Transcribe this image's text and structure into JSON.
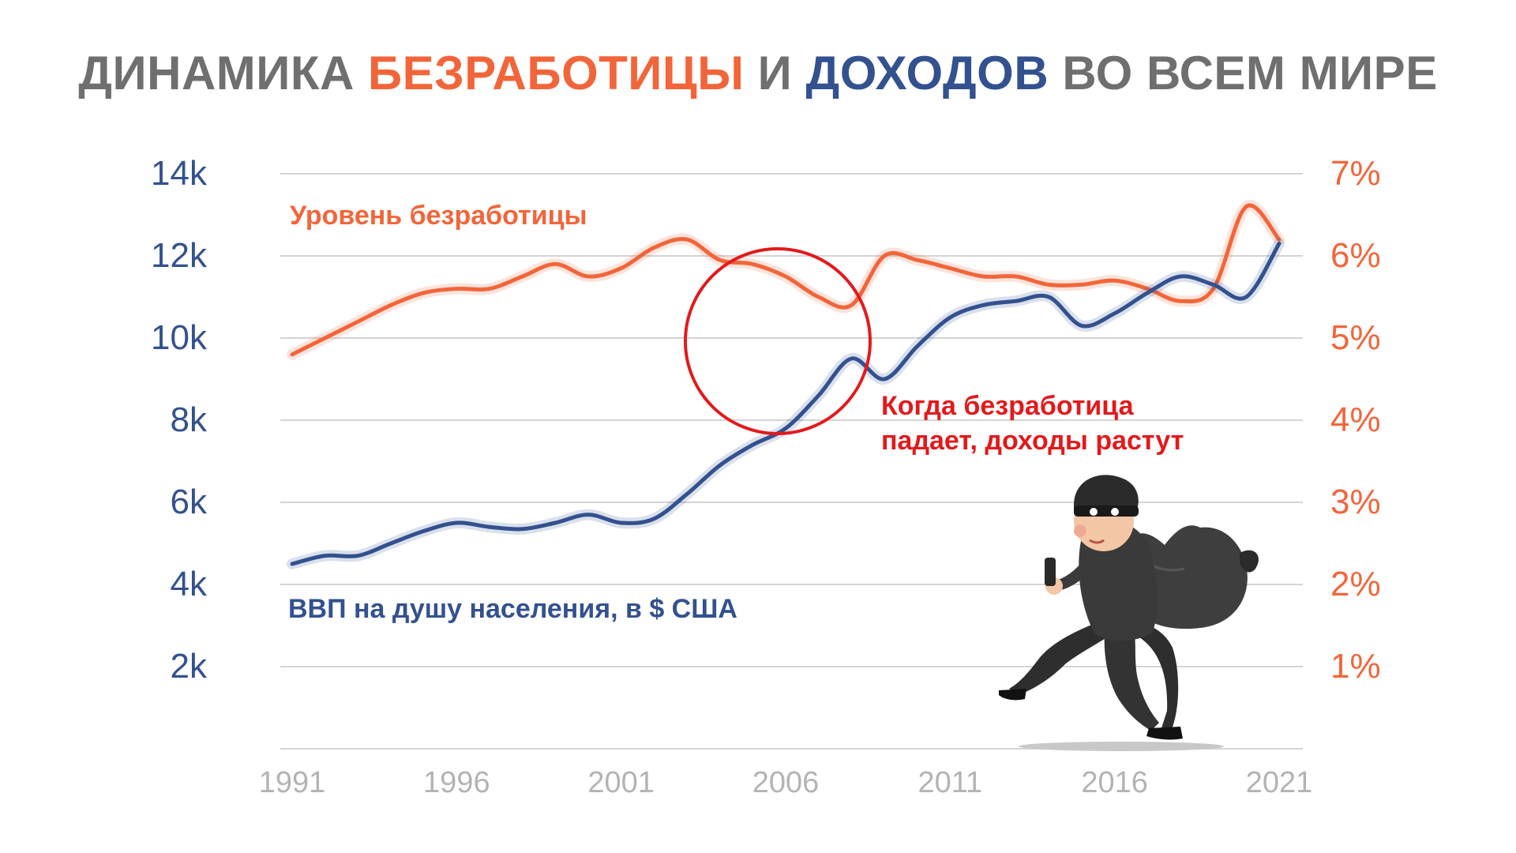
{
  "title": {
    "part1": "ДИНАМИКА ",
    "part2": "БЕЗРАБОТИЦЫ",
    "part3": " И ",
    "part4": "ДОХОДОВ",
    "part5": " ВО ВСЕМ МИРЕ"
  },
  "annotation": {
    "line1": "Когда безработица",
    "line2": "падает, доходы растут"
  },
  "illustration": "thief-with-money-bag",
  "colors": {
    "unemployment": "#f2653a",
    "gdp": "#33518f",
    "highlight_circle": "#e3191c",
    "title_gray": "#6f6f6f"
  },
  "chart_data": {
    "type": "line",
    "title": "ДИНАМИКА БЕЗРАБОТИЦЫ И ДОХОДОВ ВО ВСЕМ МИРЕ",
    "x_ticks": [
      "1991",
      "1996",
      "2001",
      "2006",
      "2011",
      "2016",
      "2021"
    ],
    "y_left_ticks": [
      "2k",
      "4k",
      "6k",
      "8k",
      "10k",
      "12k",
      "14k"
    ],
    "y_right_ticks": [
      "1%",
      "2%",
      "3%",
      "4%",
      "5%",
      "6%",
      "7%"
    ],
    "y_left_range": [
      0,
      14000
    ],
    "y_right_range": [
      0,
      7
    ],
    "grid": "horizontal",
    "series": [
      {
        "name": "Уровень безработицы",
        "axis": "right",
        "x": [
          1991,
          1992,
          1993,
          1994,
          1995,
          1996,
          1997,
          1998,
          1999,
          2000,
          2001,
          2002,
          2003,
          2004,
          2005,
          2006,
          2007,
          2008,
          2009,
          2010,
          2011,
          2012,
          2013,
          2014,
          2015,
          2016,
          2017,
          2018,
          2019,
          2020,
          2021
        ],
        "values": [
          4.8,
          5.0,
          5.2,
          5.4,
          5.55,
          5.6,
          5.6,
          5.75,
          5.9,
          5.75,
          5.85,
          6.1,
          6.2,
          5.95,
          5.9,
          5.75,
          5.5,
          5.4,
          6.0,
          5.95,
          5.85,
          5.75,
          5.75,
          5.65,
          5.65,
          5.7,
          5.6,
          5.45,
          5.6,
          6.6,
          6.2
        ]
      },
      {
        "name": "ВВП на душу населения, в $ США",
        "axis": "left",
        "x": [
          1991,
          1992,
          1993,
          1994,
          1995,
          1996,
          1997,
          1998,
          1999,
          2000,
          2001,
          2002,
          2003,
          2004,
          2005,
          2006,
          2007,
          2008,
          2009,
          2010,
          2011,
          2012,
          2013,
          2014,
          2015,
          2016,
          2017,
          2018,
          2019,
          2020,
          2021
        ],
        "values": [
          4500,
          4700,
          4700,
          5000,
          5300,
          5500,
          5400,
          5350,
          5500,
          5700,
          5500,
          5600,
          6200,
          6900,
          7400,
          7800,
          8600,
          9500,
          9000,
          9800,
          10500,
          10800,
          10900,
          11000,
          10300,
          10600,
          11100,
          11500,
          11300,
          11000,
          12300
        ]
      }
    ]
  }
}
